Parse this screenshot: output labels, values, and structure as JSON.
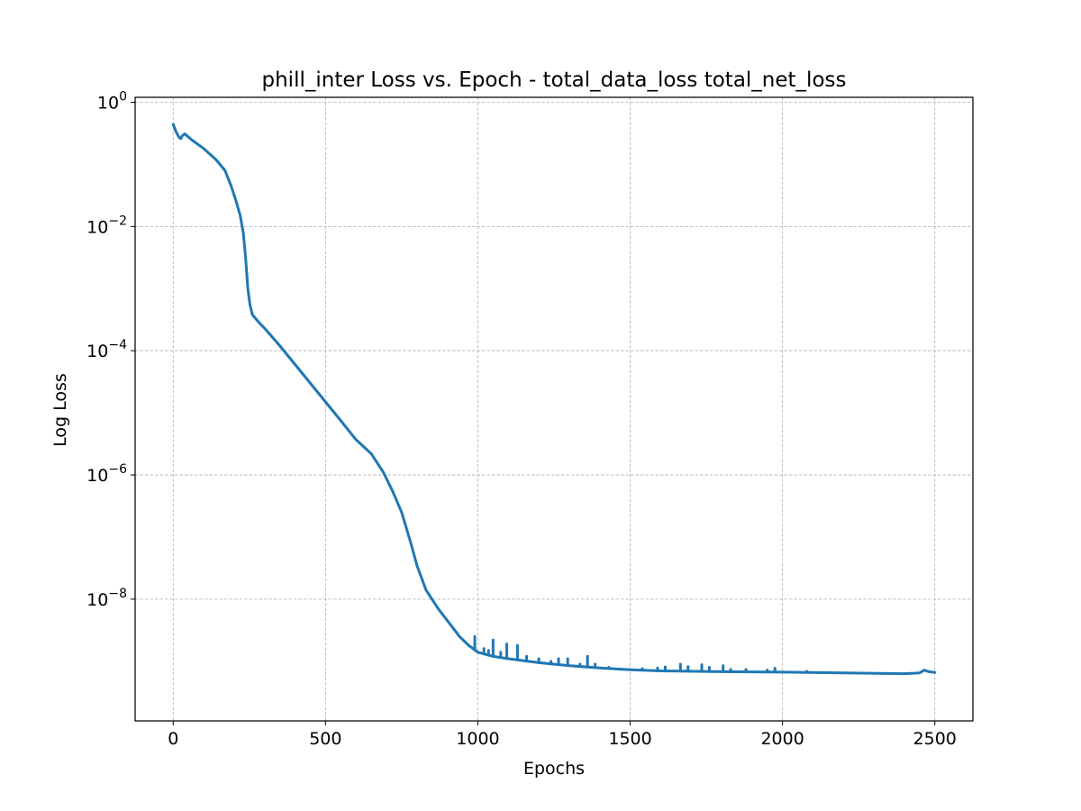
{
  "chart_data": {
    "type": "line",
    "title": "phill_inter Loss vs. Epoch - total_data_loss total_net_loss",
    "xlabel": "Epochs",
    "ylabel": "Log Loss",
    "xlim": [
      -125,
      2625
    ],
    "ylim_log10": [
      -9.96,
      0.08
    ],
    "yscale": "log",
    "grid": true,
    "color": "#1f77b4",
    "xticks": [
      {
        "value": 0,
        "label": "0"
      },
      {
        "value": 500,
        "label": "500"
      },
      {
        "value": 1000,
        "label": "1000"
      },
      {
        "value": 1500,
        "label": "1500"
      },
      {
        "value": 2000,
        "label": "2000"
      },
      {
        "value": 2500,
        "label": "2500"
      }
    ],
    "yticks": [
      {
        "exp": 0,
        "base": "10",
        "sup": "0"
      },
      {
        "exp": -2,
        "base": "10",
        "sup": "−2"
      },
      {
        "exp": -4,
        "base": "10",
        "sup": "−4"
      },
      {
        "exp": -6,
        "base": "10",
        "sup": "−6"
      },
      {
        "exp": -8,
        "base": "10",
        "sup": "−8"
      }
    ],
    "series": [
      {
        "points": [
          [
            0,
            0.44
          ],
          [
            10,
            0.33
          ],
          [
            20,
            0.27
          ],
          [
            25,
            0.26
          ],
          [
            30,
            0.29
          ],
          [
            38,
            0.31
          ],
          [
            60,
            0.25
          ],
          [
            100,
            0.18
          ],
          [
            140,
            0.12
          ],
          [
            170,
            0.08
          ],
          [
            190,
            0.045
          ],
          [
            205,
            0.027
          ],
          [
            220,
            0.015
          ],
          [
            230,
            0.008
          ],
          [
            238,
            0.003
          ],
          [
            245,
            0.001
          ],
          [
            252,
            0.00055
          ],
          [
            260,
            0.00038
          ],
          [
            280,
            0.00029
          ],
          [
            300,
            0.00023
          ],
          [
            350,
            0.00012
          ],
          [
            400,
            6e-05
          ],
          [
            450,
            3e-05
          ],
          [
            500,
            1.5e-05
          ],
          [
            550,
            7.5e-06
          ],
          [
            600,
            3.7e-06
          ],
          [
            650,
            2.2e-06
          ],
          [
            690,
            1.1e-06
          ],
          [
            720,
            5.5e-07
          ],
          [
            750,
            2.5e-07
          ],
          [
            780,
            8e-08
          ],
          [
            800,
            3.5e-08
          ],
          [
            830,
            1.4e-08
          ],
          [
            870,
            7e-09
          ],
          [
            900,
            4.5e-09
          ],
          [
            940,
            2.5e-09
          ],
          [
            970,
            1.8e-09
          ],
          [
            1000,
            1.4e-09
          ],
          [
            1050,
            1.2e-09
          ],
          [
            1100,
            1.1e-09
          ],
          [
            1200,
            9.5e-10
          ],
          [
            1300,
            8.5e-10
          ],
          [
            1400,
            7.8e-10
          ],
          [
            1500,
            7.3e-10
          ],
          [
            1600,
            7e-10
          ],
          [
            1800,
            6.8e-10
          ],
          [
            2000,
            6.7e-10
          ],
          [
            2200,
            6.5e-10
          ],
          [
            2400,
            6.3e-10
          ],
          [
            2450,
            6.5e-10
          ],
          [
            2465,
            7.2e-10
          ],
          [
            2480,
            6.8e-10
          ],
          [
            2500,
            6.6e-10
          ]
        ],
        "spikes": [
          [
            990,
            2.5e-09
          ],
          [
            1020,
            1.6e-09
          ],
          [
            1035,
            1.5e-09
          ],
          [
            1050,
            2.2e-09
          ],
          [
            1075,
            1.4e-09
          ],
          [
            1095,
            1.9e-09
          ],
          [
            1130,
            1.8e-09
          ],
          [
            1160,
            1.2e-09
          ],
          [
            1200,
            1.1e-09
          ],
          [
            1240,
            1e-09
          ],
          [
            1265,
            1.1e-09
          ],
          [
            1295,
            1.1e-09
          ],
          [
            1335,
            9e-10
          ],
          [
            1360,
            1.2e-09
          ],
          [
            1385,
            9e-10
          ],
          [
            1430,
            8e-10
          ],
          [
            1470,
            7.4e-10
          ],
          [
            1540,
            7.6e-10
          ],
          [
            1590,
            7.8e-10
          ],
          [
            1615,
            8.1e-10
          ],
          [
            1665,
            9e-10
          ],
          [
            1690,
            8.2e-10
          ],
          [
            1735,
            8.8e-10
          ],
          [
            1760,
            8e-10
          ],
          [
            1805,
            8.5e-10
          ],
          [
            1830,
            7.4e-10
          ],
          [
            1880,
            7.4e-10
          ],
          [
            1950,
            7.2e-10
          ],
          [
            1975,
            7.7e-10
          ],
          [
            2080,
            6.9e-10
          ]
        ]
      }
    ]
  }
}
